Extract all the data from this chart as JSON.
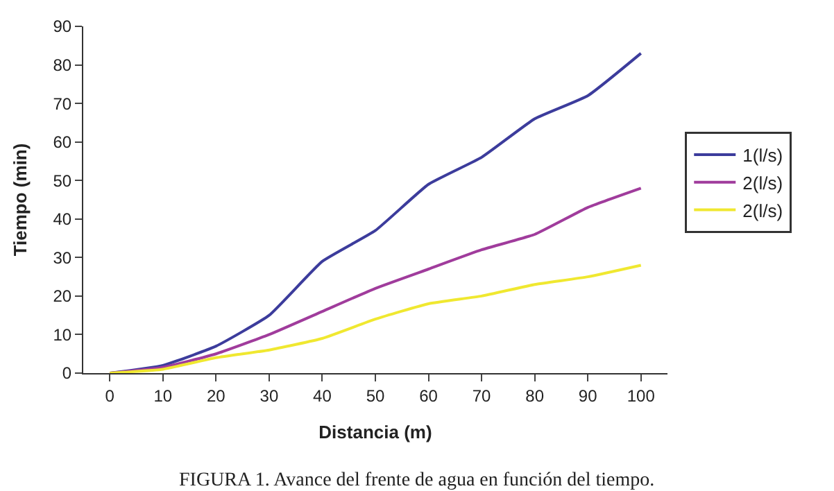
{
  "chart_data": {
    "type": "line",
    "xlabel": "Distancia (m)",
    "ylabel": "Tiempo (min)",
    "categories": [
      "0",
      "10",
      "20",
      "30",
      "40",
      "50",
      "60",
      "70",
      "80",
      "90",
      "100"
    ],
    "series": [
      {
        "name": "1(l/s)",
        "color": "#3c3c9c",
        "values": [
          0,
          2,
          7,
          15,
          29,
          37,
          49,
          56,
          66,
          72,
          83
        ]
      },
      {
        "name": "2(l/s)",
        "color": "#a03c9c",
        "values": [
          0,
          1.5,
          5,
          10,
          16,
          22,
          27,
          32,
          36,
          43,
          48
        ]
      },
      {
        "name": "2(l/s)",
        "color": "#f0e830",
        "values": [
          0,
          1,
          4,
          6,
          9,
          14,
          18,
          20,
          23,
          25,
          28
        ]
      }
    ],
    "ylim": [
      0,
      90
    ],
    "yticks": [
      0,
      10,
      20,
      30,
      40,
      50,
      60,
      70,
      80,
      90
    ],
    "legend": "right",
    "marker": "none",
    "line_style": "solid",
    "annotations": [
      "FIGURA 1. Avance del frente de agua en función del tiempo."
    ]
  }
}
